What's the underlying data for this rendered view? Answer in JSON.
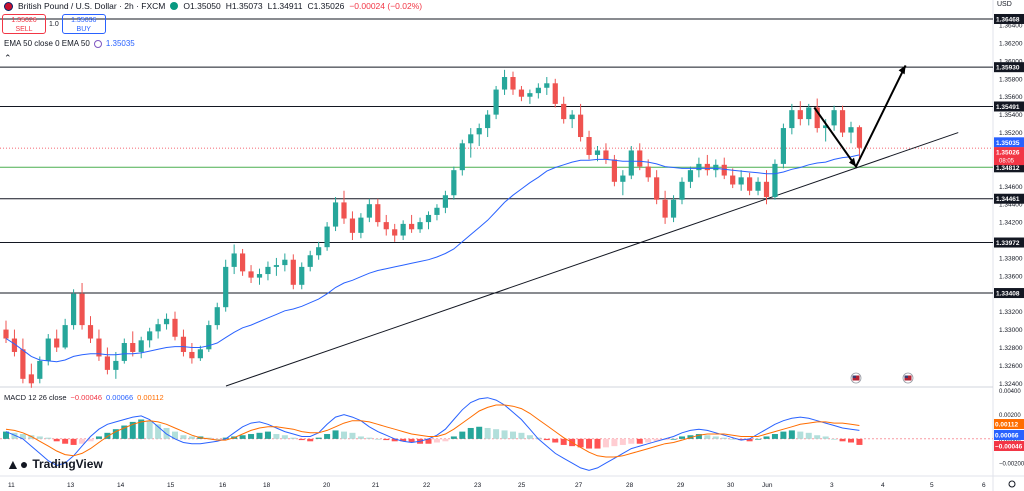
{
  "header": {
    "title": "British Pound / U.S. Dollar · 2h · FXCM",
    "open": "O1.35050",
    "high": "H1.35073",
    "low": "L1.34911",
    "close": "C1.35026",
    "change": "−0.00024 (−0.02%)",
    "status_color": "#089981"
  },
  "trade": {
    "sell_price": "1.35026",
    "sell_label": "SELL",
    "spread": "1.0",
    "buy_price": "1.35036",
    "buy_label": "BUY"
  },
  "ema_legend": {
    "label": "EMA 50 close 0 EMA 50",
    "value": "1.35035"
  },
  "collapse_icon": "chevron-up-icon",
  "macd_legend": {
    "label": "MACD 12 26 close",
    "hist": "−0.00046",
    "macd": "0.00066",
    "signal": "0.00112"
  },
  "axis_currency": "USD",
  "branding": "TradingView",
  "chart_data": {
    "type": "candlestick",
    "instrument": "British Pound / U.S. Dollar",
    "timeframe": "2h",
    "x_ticks": [
      "11",
      "13",
      "14",
      "15",
      "16",
      "18",
      "20",
      "21",
      "22",
      "23",
      "25",
      "27",
      "28",
      "29",
      "30",
      "Jun",
      "3",
      "4",
      "5",
      "6"
    ],
    "price_ticks": [
      "1.36600",
      "1.36400",
      "1.36200",
      "1.36000",
      "1.35800",
      "1.35600",
      "1.35400",
      "1.35200",
      "1.35000",
      "1.34800",
      "1.34600",
      "1.34400",
      "1.34200",
      "1.34000",
      "1.33800",
      "1.33600",
      "1.33400",
      "1.33200",
      "1.33000",
      "1.32800",
      "1.32600",
      "1.32400"
    ],
    "ylim": [
      1.3237,
      1.3668
    ],
    "levels": [
      {
        "label": "1.36468",
        "value": 1.36468
      },
      {
        "label": "1.35930",
        "value": 1.3593
      },
      {
        "label": "1.35491",
        "value": 1.35491
      },
      {
        "label": "1.34461",
        "value": 1.34461
      },
      {
        "label": "1.33972",
        "value": 1.33972
      },
      {
        "label": "1.33408",
        "value": 1.33408
      }
    ],
    "green_level": {
      "label": "1.34812",
      "value": 1.34812
    },
    "price_labels": [
      {
        "label": "1.35035",
        "value": 1.35035,
        "color": "#2962ff"
      },
      {
        "label": "1.35026",
        "value": 1.35026,
        "color": "#f23645",
        "countdown": "08:05"
      }
    ],
    "candles": [
      [
        1.33,
        1.331,
        1.3285,
        1.329
      ],
      [
        1.329,
        1.33,
        1.327,
        1.3275
      ],
      [
        1.3278,
        1.329,
        1.324,
        1.3245
      ],
      [
        1.325,
        1.3262,
        1.3235,
        1.324
      ],
      [
        1.3245,
        1.327,
        1.324,
        1.3265
      ],
      [
        1.3265,
        1.3295,
        1.326,
        1.329
      ],
      [
        1.329,
        1.33,
        1.3275,
        1.328
      ],
      [
        1.328,
        1.3312,
        1.3278,
        1.3305
      ],
      [
        1.3305,
        1.3345,
        1.33,
        1.334
      ],
      [
        1.334,
        1.3352,
        1.33,
        1.3305
      ],
      [
        1.3305,
        1.3315,
        1.3285,
        1.329
      ],
      [
        1.329,
        1.33,
        1.3265,
        1.327
      ],
      [
        1.327,
        1.328,
        1.325,
        1.3255
      ],
      [
        1.3255,
        1.3275,
        1.3245,
        1.3265
      ],
      [
        1.3265,
        1.329,
        1.3262,
        1.3285
      ],
      [
        1.3285,
        1.3298,
        1.327,
        1.3275
      ],
      [
        1.3275,
        1.3292,
        1.3268,
        1.3288
      ],
      [
        1.3288,
        1.3302,
        1.328,
        1.3298
      ],
      [
        1.3298,
        1.3312,
        1.329,
        1.3306
      ],
      [
        1.3306,
        1.3318,
        1.33,
        1.3312
      ],
      [
        1.3312,
        1.332,
        1.3288,
        1.3292
      ],
      [
        1.3292,
        1.33,
        1.327,
        1.3275
      ],
      [
        1.3275,
        1.3285,
        1.3262,
        1.3268
      ],
      [
        1.3268,
        1.3282,
        1.3265,
        1.3278
      ],
      [
        1.3278,
        1.331,
        1.3275,
        1.3305
      ],
      [
        1.3305,
        1.333,
        1.33,
        1.3325
      ],
      [
        1.3325,
        1.3378,
        1.332,
        1.337
      ],
      [
        1.337,
        1.3395,
        1.3362,
        1.3385
      ],
      [
        1.3385,
        1.339,
        1.336,
        1.3365
      ],
      [
        1.3365,
        1.3372,
        1.3352,
        1.3358
      ],
      [
        1.3358,
        1.3368,
        1.335,
        1.3362
      ],
      [
        1.3362,
        1.3376,
        1.3355,
        1.337
      ],
      [
        1.337,
        1.338,
        1.336,
        1.3372
      ],
      [
        1.3372,
        1.3385,
        1.3365,
        1.3378
      ],
      [
        1.3378,
        1.3384,
        1.3345,
        1.335
      ],
      [
        1.335,
        1.3375,
        1.3345,
        1.337
      ],
      [
        1.337,
        1.3388,
        1.3365,
        1.3383
      ],
      [
        1.3383,
        1.3398,
        1.3378,
        1.3392
      ],
      [
        1.3392,
        1.342,
        1.3388,
        1.3415
      ],
      [
        1.3415,
        1.3448,
        1.341,
        1.3442
      ],
      [
        1.3442,
        1.3455,
        1.3418,
        1.3424
      ],
      [
        1.3424,
        1.3432,
        1.34,
        1.3408
      ],
      [
        1.3408,
        1.343,
        1.3402,
        1.3425
      ],
      [
        1.3425,
        1.3446,
        1.342,
        1.344
      ],
      [
        1.344,
        1.3446,
        1.3415,
        1.342
      ],
      [
        1.342,
        1.3428,
        1.3405,
        1.3412
      ],
      [
        1.3412,
        1.3418,
        1.3398,
        1.3405
      ],
      [
        1.3405,
        1.3422,
        1.34,
        1.3418
      ],
      [
        1.3418,
        1.3428,
        1.3408,
        1.3412
      ],
      [
        1.3412,
        1.3425,
        1.3408,
        1.342
      ],
      [
        1.342,
        1.3432,
        1.3412,
        1.3428
      ],
      [
        1.3428,
        1.344,
        1.3422,
        1.3436
      ],
      [
        1.3436,
        1.3455,
        1.343,
        1.345
      ],
      [
        1.345,
        1.3482,
        1.3445,
        1.3478
      ],
      [
        1.3478,
        1.3512,
        1.3472,
        1.3508
      ],
      [
        1.3508,
        1.3525,
        1.3492,
        1.3518
      ],
      [
        1.3518,
        1.353,
        1.3505,
        1.3525
      ],
      [
        1.3525,
        1.3545,
        1.3515,
        1.354
      ],
      [
        1.354,
        1.3572,
        1.3535,
        1.3568
      ],
      [
        1.3568,
        1.359,
        1.3562,
        1.3582
      ],
      [
        1.3582,
        1.3588,
        1.3562,
        1.3568
      ],
      [
        1.3568,
        1.3572,
        1.3555,
        1.356
      ],
      [
        1.356,
        1.3568,
        1.3552,
        1.3564
      ],
      [
        1.3564,
        1.3575,
        1.3558,
        1.357
      ],
      [
        1.357,
        1.3582,
        1.3562,
        1.3575
      ],
      [
        1.3575,
        1.358,
        1.3548,
        1.3552
      ],
      [
        1.3552,
        1.356,
        1.353,
        1.3535
      ],
      [
        1.3535,
        1.3545,
        1.3525,
        1.354
      ],
      [
        1.354,
        1.3552,
        1.351,
        1.3515
      ],
      [
        1.3515,
        1.3522,
        1.349,
        1.3495
      ],
      [
        1.3495,
        1.3505,
        1.3488,
        1.35
      ],
      [
        1.35,
        1.3508,
        1.3485,
        1.349
      ],
      [
        1.349,
        1.3495,
        1.346,
        1.3465
      ],
      [
        1.3465,
        1.3478,
        1.345,
        1.3472
      ],
      [
        1.3472,
        1.3505,
        1.3468,
        1.35
      ],
      [
        1.35,
        1.3508,
        1.3478,
        1.3482
      ],
      [
        1.3482,
        1.349,
        1.3465,
        1.347
      ],
      [
        1.347,
        1.3478,
        1.344,
        1.3445
      ],
      [
        1.3445,
        1.3455,
        1.3418,
        1.3425
      ],
      [
        1.3425,
        1.345,
        1.342,
        1.3445
      ],
      [
        1.3445,
        1.347,
        1.344,
        1.3465
      ],
      [
        1.3465,
        1.3482,
        1.3458,
        1.3478
      ],
      [
        1.3478,
        1.3492,
        1.347,
        1.3485
      ],
      [
        1.3485,
        1.3495,
        1.3472,
        1.3478
      ],
      [
        1.3478,
        1.349,
        1.347,
        1.3484
      ],
      [
        1.3484,
        1.3492,
        1.3468,
        1.3472
      ],
      [
        1.3472,
        1.348,
        1.3458,
        1.3462
      ],
      [
        1.3462,
        1.3478,
        1.3455,
        1.347
      ],
      [
        1.347,
        1.3475,
        1.345,
        1.3455
      ],
      [
        1.3455,
        1.347,
        1.345,
        1.3465
      ],
      [
        1.3465,
        1.3478,
        1.344,
        1.3448
      ],
      [
        1.3448,
        1.349,
        1.3445,
        1.3485
      ],
      [
        1.3485,
        1.353,
        1.348,
        1.3525
      ],
      [
        1.3525,
        1.3552,
        1.3518,
        1.3545
      ],
      [
        1.3545,
        1.3555,
        1.3528,
        1.3535
      ],
      [
        1.3535,
        1.3552,
        1.3528,
        1.3548
      ],
      [
        1.3548,
        1.3558,
        1.352,
        1.3525
      ],
      [
        1.3525,
        1.3535,
        1.351,
        1.3528
      ],
      [
        1.3528,
        1.355,
        1.3522,
        1.3545
      ],
      [
        1.3545,
        1.355,
        1.3515,
        1.352
      ],
      [
        1.352,
        1.3532,
        1.3508,
        1.3526
      ],
      [
        1.3526,
        1.3528,
        1.349,
        1.3503
      ]
    ],
    "ema50": [
      1.329,
      1.3284,
      1.3277,
      1.327,
      1.3266,
      1.3265,
      1.3264,
      1.3266,
      1.327,
      1.3272,
      1.3273,
      1.3273,
      1.3272,
      1.3272,
      1.3273,
      1.3273,
      1.3274,
      1.3276,
      1.3278,
      1.328,
      1.3281,
      1.3281,
      1.328,
      1.328,
      1.3282,
      1.3285,
      1.3291,
      1.3297,
      1.3302,
      1.3305,
      1.3309,
      1.3313,
      1.3317,
      1.3321,
      1.3323,
      1.3326,
      1.333,
      1.3334,
      1.334,
      1.3347,
      1.3352,
      1.3355,
      1.3359,
      1.3363,
      1.3366,
      1.3368,
      1.337,
      1.3372,
      1.3374,
      1.3376,
      1.3378,
      1.3381,
      1.3385,
      1.339,
      1.3398,
      1.3406,
      1.3414,
      1.3422,
      1.3432,
      1.3442,
      1.345,
      1.3457,
      1.3464,
      1.347,
      1.3477,
      1.3481,
      1.3484,
      1.3487,
      1.3489,
      1.3489,
      1.349,
      1.349,
      1.3489,
      1.3488,
      1.3488,
      1.3488,
      1.3487,
      1.3485,
      1.3482,
      1.3481,
      1.348,
      1.348,
      1.348,
      1.348,
      1.348,
      1.3479,
      1.3478,
      1.3477,
      1.3476,
      1.3475,
      1.3474,
      1.3474,
      1.3476,
      1.3479,
      1.3481,
      1.3484,
      1.3486,
      1.3487,
      1.349,
      1.3492,
      1.3493,
      1.3495
    ],
    "trendline": [
      [
        1.3237,
        0.223
      ],
      [
        1.352,
        0.965
      ]
    ],
    "projection_arrow": [
      [
        1.3548,
        0.82
      ],
      [
        1.3482,
        0.862
      ],
      [
        1.3595,
        0.912
      ]
    ],
    "event_markers": [
      "us-flag-icon",
      "us-flag-icon"
    ],
    "macd_ticks": [
      "0.00400",
      "0.00200",
      "0.00000",
      "−0.00200"
    ],
    "macd_labels": [
      {
        "label": "0.00112",
        "value": 0.00112,
        "color": "#ff6d00"
      },
      {
        "label": "0.00066",
        "value": 0.00066,
        "color": "#2962ff"
      },
      {
        "label": "−0.00046",
        "value": -0.00046,
        "color": "#f23645"
      }
    ],
    "macd_ylim": [
      -0.0029,
      0.0042
    ],
    "macd_hist": [
      0.0006,
      0.0005,
      0.0004,
      0.0003,
      0.0002,
      0.0001,
      -0.0002,
      -0.0004,
      -0.0005,
      -0.0004,
      -0.0002,
      0.0002,
      0.0005,
      0.0008,
      0.0011,
      0.0014,
      0.0016,
      0.0015,
      0.0012,
      0.0009,
      0.0006,
      0.0003,
      0.0002,
      0.0002,
      0.0001,
      0.0,
      0.0001,
      0.0002,
      0.0003,
      0.0004,
      0.0005,
      0.0006,
      0.0004,
      0.0003,
      0.0001,
      -0.0001,
      -0.0002,
      0.0001,
      0.0004,
      0.0007,
      0.0006,
      0.0005,
      0.0002,
      0.0001,
      0.0,
      -0.0001,
      -0.0002,
      -0.0002,
      -0.0003,
      -0.0004,
      -0.0004,
      -0.0003,
      -0.0002,
      0.0002,
      0.0006,
      0.0009,
      0.001,
      0.0009,
      0.0008,
      0.0007,
      0.0006,
      0.0005,
      0.0003,
      0.0001,
      -0.0001,
      -0.0003,
      -0.0005,
      -0.0006,
      -0.0007,
      -0.0008,
      -0.0008,
      -0.0007,
      -0.0006,
      -0.0005,
      -0.0004,
      -0.0004,
      -0.0003,
      -0.0002,
      -0.0001,
      0.0,
      0.0002,
      0.0003,
      0.0004,
      0.0003,
      0.0002,
      0.0001,
      0.0,
      -0.0001,
      -0.0002,
      0.0,
      0.0002,
      0.0004,
      0.0006,
      0.0007,
      0.0006,
      0.0005,
      0.0003,
      0.0002,
      0.0,
      -0.0002,
      -0.0003,
      -0.0005
    ],
    "macd_line": [
      0.0006,
      0.0003,
      0.0,
      -0.0006,
      -0.0012,
      -0.0018,
      -0.0022,
      -0.002,
      -0.0014,
      -0.0006,
      0.0002,
      0.0008,
      0.0012,
      0.0014,
      0.0016,
      0.0018,
      0.0019,
      0.0016,
      0.001,
      0.0004,
      0.0,
      -0.0003,
      -0.0004,
      -0.0004,
      -0.0003,
      -0.0002,
      0.0,
      0.0005,
      0.001,
      0.0013,
      0.0014,
      0.0012,
      0.0009,
      0.0006,
      0.0004,
      0.0002,
      0.0002,
      0.0005,
      0.0012,
      0.0018,
      0.002,
      0.0018,
      0.0015,
      0.001,
      0.0006,
      0.0003,
      0.0,
      -0.0002,
      -0.0003,
      -0.0002,
      0.0,
      0.0003,
      0.0008,
      0.0016,
      0.0024,
      0.003,
      0.0033,
      0.0034,
      0.0032,
      0.0028,
      0.0022,
      0.0016,
      0.0008,
      0.0,
      -0.0006,
      -0.0012,
      -0.0016,
      -0.002,
      -0.0024,
      -0.0026,
      -0.0024,
      -0.002,
      -0.0016,
      -0.0012,
      -0.0008,
      -0.0006,
      -0.0004,
      -0.0002,
      0.0,
      0.0002,
      0.0005,
      0.0007,
      0.0008,
      0.0007,
      0.0005,
      0.0003,
      0.0001,
      -0.0001,
      0.0,
      0.0004,
      0.0008,
      0.0012,
      0.0015,
      0.0017,
      0.0018,
      0.0017,
      0.0015,
      0.0013,
      0.0011,
      0.0009,
      0.0008,
      0.0007
    ],
    "signal_line": [
      0.0008,
      0.0007,
      0.0005,
      0.0002,
      -0.0002,
      -0.0006,
      -0.001,
      -0.0013,
      -0.0014,
      -0.0012,
      -0.0008,
      -0.0003,
      0.0002,
      0.0006,
      0.0009,
      0.0012,
      0.0014,
      0.0015,
      0.0014,
      0.0012,
      0.0009,
      0.0006,
      0.0003,
      0.0001,
      0.0,
      -0.0001,
      -0.0001,
      0.0001,
      0.0004,
      0.0007,
      0.0009,
      0.001,
      0.001,
      0.0009,
      0.0008,
      0.0006,
      0.0005,
      0.0005,
      0.0007,
      0.001,
      0.0013,
      0.0015,
      0.0015,
      0.0014,
      0.0012,
      0.001,
      0.0008,
      0.0006,
      0.0004,
      0.0003,
      0.0002,
      0.0002,
      0.0004,
      0.0008,
      0.0013,
      0.0018,
      0.0023,
      0.0026,
      0.0028,
      0.0028,
      0.0027,
      0.0025,
      0.0021,
      0.0016,
      0.0011,
      0.0006,
      0.0001,
      -0.0003,
      -0.0007,
      -0.0011,
      -0.0014,
      -0.0015,
      -0.0015,
      -0.0014,
      -0.0012,
      -0.001,
      -0.0008,
      -0.0006,
      -0.0004,
      -0.0003,
      -0.0001,
      0.0001,
      0.0003,
      0.0004,
      0.0004,
      0.0004,
      0.0003,
      0.0002,
      0.0002,
      0.0002,
      0.0004,
      0.0006,
      0.0008,
      0.001,
      0.0012,
      0.0013,
      0.0014,
      0.0014,
      0.0013,
      0.0013,
      0.0012,
      0.0011
    ],
    "colors": {
      "up": "#26a69a",
      "down": "#ef5350",
      "ema": "#2962ff",
      "macd": "#2962ff",
      "signal": "#ff6d00",
      "level": "#131722",
      "green_level": "#4caf50"
    }
  }
}
